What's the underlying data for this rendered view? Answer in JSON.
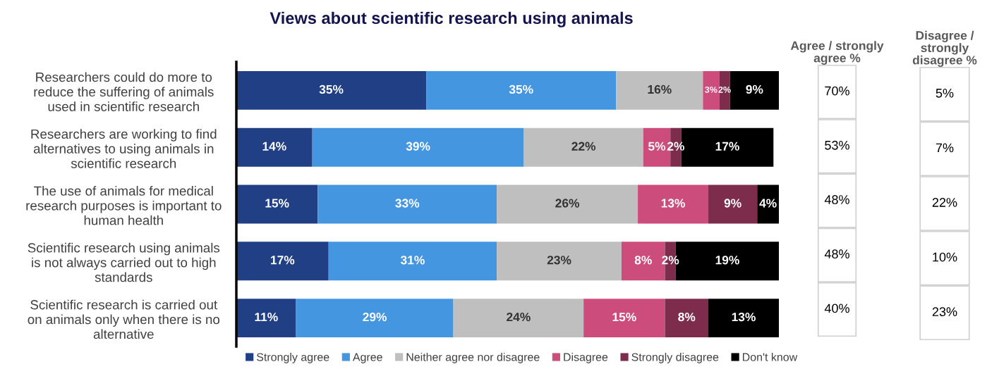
{
  "chart_data": [
    {
      "type": "bar",
      "orientation": "horizontal",
      "stacked": true,
      "title": "Views about scientific research using animals",
      "categories": [
        "Researchers could do more to\nreduce the suffering of animals\nused in scientific research",
        "Researchers are working to find\nalternatives to using animals in\nscientific research",
        "The use of animals for medical\nresearch purposes is important to\nhuman health",
        "Scientific research using animals\nis not always carried out to high\nstandards",
        "Scientific research is carried out\non animals only when there is no\nalternative"
      ],
      "series": [
        {
          "name": "Strongly agree",
          "color": "#203f85",
          "values": [
            35,
            14,
            15,
            17,
            11
          ],
          "value_labels": [
            "35%",
            "14%",
            "15%",
            "17%",
            "11%"
          ]
        },
        {
          "name": "Agree",
          "color": "#4596e0",
          "values": [
            35,
            39,
            33,
            31,
            29
          ],
          "value_labels": [
            "35%",
            "39%",
            "33%",
            "31%",
            "29%"
          ]
        },
        {
          "name": "Neither agree nor disagree",
          "color": "#bfbfbf",
          "values": [
            16,
            22,
            26,
            23,
            24
          ],
          "value_labels": [
            "16%",
            "22%",
            "26%",
            "23%",
            "24%"
          ]
        },
        {
          "name": "Disagree",
          "color": "#cc4c7b",
          "values": [
            3,
            5,
            13,
            8,
            15
          ],
          "value_labels": [
            "3%",
            "5%",
            "13%",
            "8%",
            "15%"
          ]
        },
        {
          "name": "Strongly disagree",
          "color": "#7d2c4c",
          "values": [
            2,
            2,
            9,
            2,
            8
          ],
          "value_labels": [
            "2%",
            "2%",
            "9%",
            "2%",
            "8%"
          ]
        },
        {
          "name": "Don't know",
          "color": "#000000",
          "values": [
            9,
            17,
            4,
            19,
            13
          ],
          "value_labels": [
            "9%",
            "17%",
            "4%",
            "19%",
            "13%"
          ]
        }
      ],
      "xlim": [
        0,
        100
      ],
      "tick_labels": "y",
      "legend": "bottom"
    },
    {
      "type": "other",
      "title": "Agree / strongly\nagree %",
      "annotations": [
        "70%",
        "53%",
        "48%",
        "48%",
        "40%"
      ]
    },
    {
      "type": "other",
      "title": "Disagree /\nstrongly\ndisagree %",
      "annotations": [
        "5%",
        "7%",
        "22%",
        "10%",
        "23%"
      ]
    }
  ]
}
